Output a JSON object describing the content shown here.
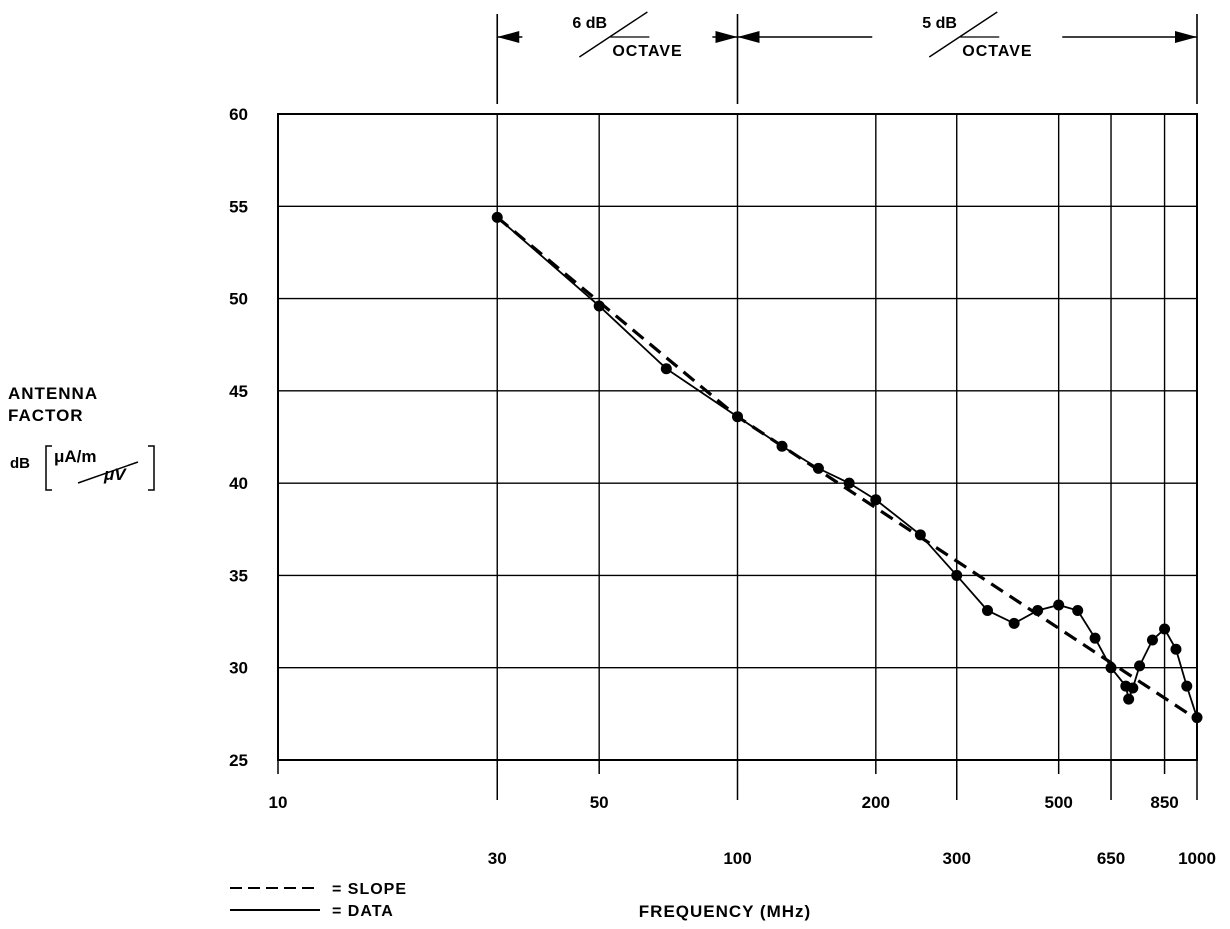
{
  "chart_data": {
    "type": "line",
    "xscale": "log",
    "xlim": [
      10,
      1000
    ],
    "ylim": [
      25,
      60
    ],
    "yticks": [
      25,
      30,
      35,
      40,
      45,
      50,
      55,
      60
    ],
    "xticks_upper": [
      10,
      50,
      200,
      500,
      850
    ],
    "xticks_lower": [
      30,
      100,
      300,
      650,
      1000
    ],
    "xlabel": "FREQUENCY (MHz)",
    "ylabel": {
      "line1": "ANTENNA",
      "line2": "FACTOR",
      "prefix": "dB",
      "unit_num": "μA/m",
      "unit_den": "μV"
    },
    "slope_annotations": [
      {
        "from": 30,
        "to": 100,
        "value": "6 dB",
        "unit": "OCTAVE"
      },
      {
        "from": 100,
        "to": 1000,
        "value": "5 dB",
        "unit": "OCTAVE"
      }
    ],
    "series": [
      {
        "name": "DATA",
        "style": "solid",
        "markers": true,
        "x": [
          30,
          50,
          70,
          100,
          125,
          150,
          175,
          200,
          250,
          300,
          350,
          400,
          450,
          500,
          550,
          600,
          650,
          700,
          710,
          725,
          750,
          800,
          850,
          900,
          950,
          1000
        ],
        "y": [
          54.4,
          49.6,
          46.2,
          43.6,
          42.0,
          40.8,
          40.0,
          39.1,
          37.2,
          35.0,
          33.1,
          32.4,
          33.1,
          33.4,
          33.1,
          31.6,
          30.0,
          29.0,
          28.3,
          28.9,
          30.1,
          31.5,
          32.1,
          31.0,
          29.0,
          27.3
        ]
      },
      {
        "name": "SLOPE",
        "style": "dashed",
        "markers": false,
        "x": [
          30,
          100,
          1000
        ],
        "y": [
          54.4,
          43.6,
          27.2
        ]
      }
    ],
    "legend": [
      {
        "style": "dashed",
        "text": "= SLOPE"
      },
      {
        "style": "solid",
        "text": "= DATA"
      }
    ],
    "legend_position": "bottom-left",
    "grid": true,
    "colors": {
      "ink": "#000000",
      "background": "#ffffff"
    }
  }
}
